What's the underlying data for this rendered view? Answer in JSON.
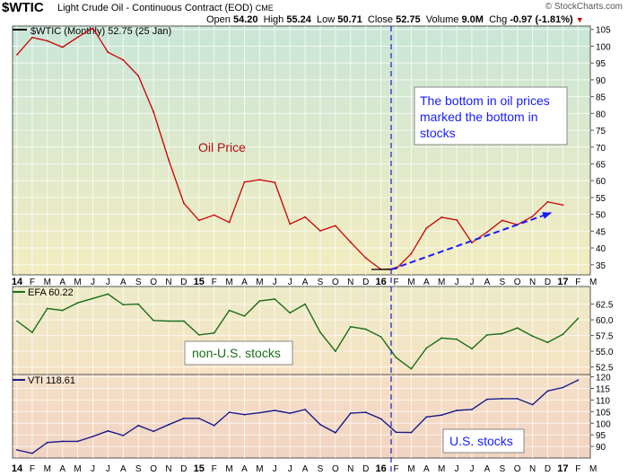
{
  "header": {
    "symbol": "$WTIC",
    "description": "Light Crude Oil - Continuous Contract (EOD)",
    "exchange": "CME",
    "watermark": "© StockCharts.com",
    "open_label": "Open",
    "open": "54.20",
    "high_label": "High",
    "high": "55.24",
    "low_label": "Low",
    "low": "50.71",
    "close_label": "Close",
    "close": "52.75",
    "volume_label": "Volume",
    "volume": "9.0M",
    "chg_label": "Chg",
    "chg": "-0.97 (-1.81%)",
    "chg_icon": "down-triangle-icon"
  },
  "colors": {
    "oil": "#cc0000",
    "efa": "#1a6e1a",
    "vti": "#1a1a8c",
    "annotation_text": "#1a1aff",
    "marker": "#1a1acc",
    "arrow": "#1a1aff"
  },
  "chart_data": [
    {
      "type": "line",
      "legend": "$WTIC (Monthly) 52.75 (25 Jan)",
      "x_tick_labels": [
        "14",
        "F",
        "M",
        "A",
        "M",
        "J",
        "J",
        "A",
        "S",
        "O",
        "N",
        "D",
        "15",
        "F",
        "M",
        "A",
        "M",
        "J",
        "J",
        "A",
        "S",
        "O",
        "N",
        "D",
        "16",
        "F",
        "M",
        "A",
        "M",
        "J",
        "J",
        "A",
        "S",
        "O",
        "N",
        "D",
        "17",
        "F",
        "M"
      ],
      "series": [
        {
          "name": "Oil Price",
          "values": [
            97.5,
            102.6,
            101.6,
            99.7,
            102.7,
            105.4,
            98.2,
            95.9,
            91.2,
            80.5,
            66.2,
            53.3,
            48.2,
            49.8,
            47.6,
            59.6,
            60.3,
            59.5,
            47.1,
            49.2,
            45.1,
            46.6,
            41.7,
            37.0,
            33.6,
            33.8,
            38.3,
            45.9,
            49.1,
            48.3,
            41.6,
            44.7,
            48.2,
            46.9,
            49.4,
            53.7,
            52.75
          ]
        }
      ],
      "y_ticks": [
        35,
        40,
        45,
        50,
        55,
        60,
        65,
        70,
        75,
        80,
        85,
        90,
        95,
        100,
        105
      ],
      "ylim": [
        32,
        106
      ],
      "annotations": [
        "Oil Price",
        "The bottom in oil prices marked the bottom in stocks"
      ]
    },
    {
      "type": "line",
      "legend": "EFA 60.22",
      "series": [
        {
          "name": "non-U.S. stocks",
          "values": [
            59.8,
            58.0,
            61.8,
            61.5,
            62.7,
            63.4,
            64.1,
            62.4,
            62.5,
            59.9,
            59.8,
            59.8,
            57.6,
            57.9,
            61.5,
            60.6,
            63.0,
            63.3,
            61.1,
            62.5,
            58.0,
            55.0,
            58.9,
            58.5,
            57.3,
            54.0,
            52.2,
            55.5,
            57.1,
            56.9,
            55.4,
            57.6,
            57.8,
            58.7,
            57.4,
            56.4,
            57.7,
            60.22
          ]
        }
      ],
      "y_ticks": [
        52.5,
        55.0,
        57.5,
        60.0,
        62.5
      ],
      "ylim": [
        51.3,
        65.3
      ],
      "annotations": [
        "non-U.S. stocks"
      ]
    },
    {
      "type": "line",
      "legend": "VTI 118.61",
      "series": [
        {
          "name": "U.S. stocks",
          "values": [
            88.5,
            87.0,
            91.7,
            92.2,
            92.2,
            94.3,
            96.7,
            94.7,
            99.0,
            96.5,
            99.4,
            102.1,
            102.1,
            99.0,
            104.7,
            103.7,
            104.5,
            105.5,
            104.3,
            105.9,
            99.4,
            95.9,
            104.3,
            104.7,
            101.9,
            96.1,
            96.0,
            102.7,
            103.5,
            105.5,
            105.9,
            110.3,
            110.6,
            110.6,
            108.0,
            113.9,
            115.4,
            118.61
          ]
        }
      ],
      "y_ticks": [
        90,
        95,
        100,
        105,
        110,
        115,
        120
      ],
      "ylim": [
        85,
        121
      ],
      "annotations": [
        "U.S. stocks"
      ]
    }
  ],
  "x_axis_labels": [
    "14",
    "F",
    "M",
    "A",
    "M",
    "J",
    "J",
    "A",
    "S",
    "O",
    "N",
    "D",
    "15",
    "F",
    "M",
    "A",
    "M",
    "J",
    "J",
    "A",
    "S",
    "O",
    "N",
    "D",
    "16",
    "F",
    "M",
    "A",
    "M",
    "J",
    "J",
    "A",
    "S",
    "O",
    "N",
    "D",
    "17",
    "F",
    "M"
  ]
}
